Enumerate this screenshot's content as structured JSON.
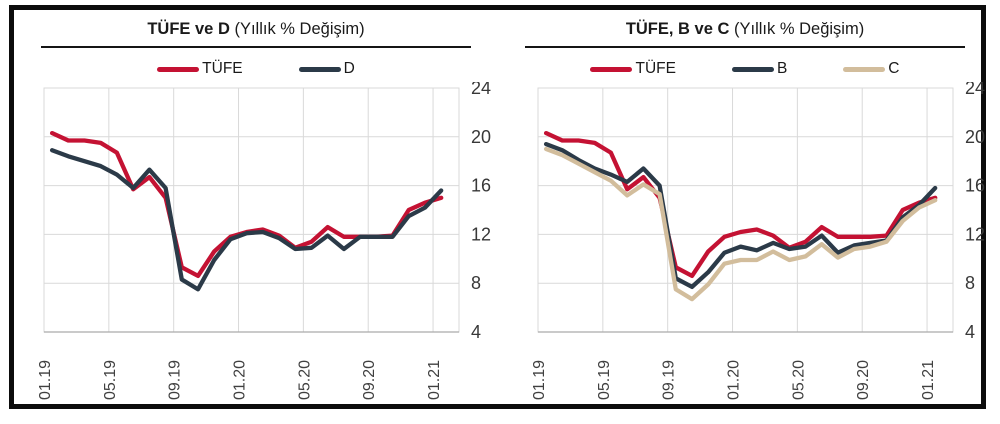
{
  "frame_color": "#0c0c0c",
  "grid_color": "#d9d9d9",
  "axis_line_color": "#ababab",
  "chart_data": [
    {
      "type": "line",
      "title_bold": "TÜFE ve D",
      "title_rest": " (Yıllık % Değişim)",
      "legend_position": "top",
      "grid": true,
      "y_axis_side": "right",
      "ylim": [
        4,
        24
      ],
      "y_ticks": [
        24,
        20,
        16,
        12,
        8,
        4
      ],
      "x_tick_labels": [
        "01.19",
        "05.19",
        "09.19",
        "01.20",
        "05.20",
        "09.20",
        "01.21"
      ],
      "x_tick_step": 4,
      "categories": [
        "01.19",
        "02.19",
        "03.19",
        "04.19",
        "05.19",
        "06.19",
        "07.19",
        "08.19",
        "09.19",
        "10.19",
        "11.19",
        "12.19",
        "01.20",
        "02.20",
        "03.20",
        "04.20",
        "05.20",
        "06.20",
        "07.20",
        "08.20",
        "09.20",
        "10.20",
        "11.20",
        "12.20",
        "01.21"
      ],
      "series": [
        {
          "name": "TÜFE",
          "color": "#c41233",
          "values": [
            20.3,
            19.7,
            19.7,
            19.5,
            18.7,
            15.7,
            16.7,
            15.0,
            9.3,
            8.6,
            10.6,
            11.8,
            12.2,
            12.4,
            11.9,
            10.9,
            11.4,
            12.6,
            11.8,
            11.8,
            11.8,
            11.9,
            14.0,
            14.6,
            15.0
          ]
        },
        {
          "name": "D",
          "color": "#2b3a48",
          "values": [
            18.9,
            18.4,
            18.0,
            17.6,
            16.9,
            15.8,
            17.3,
            15.8,
            8.3,
            7.5,
            9.9,
            11.6,
            12.1,
            12.2,
            11.7,
            10.8,
            10.9,
            11.9,
            10.8,
            11.8,
            11.8,
            11.8,
            13.5,
            14.2,
            15.6
          ]
        }
      ]
    },
    {
      "type": "line",
      "title_bold": "TÜFE, B ve C",
      "title_rest": " (Yıllık % Değişim)",
      "legend_position": "top",
      "grid": true,
      "y_axis_side": "right",
      "ylim": [
        4,
        24
      ],
      "y_ticks": [
        24,
        20,
        16,
        12,
        8,
        4
      ],
      "x_tick_labels": [
        "01.19",
        "05.19",
        "09.19",
        "01.20",
        "05.20",
        "09.20",
        "01.21"
      ],
      "x_tick_step": 4,
      "categories": [
        "01.19",
        "02.19",
        "03.19",
        "04.19",
        "05.19",
        "06.19",
        "07.19",
        "08.19",
        "09.19",
        "10.19",
        "11.19",
        "12.19",
        "01.20",
        "02.20",
        "03.20",
        "04.20",
        "05.20",
        "06.20",
        "07.20",
        "08.20",
        "09.20",
        "10.20",
        "11.20",
        "12.20",
        "01.21"
      ],
      "series": [
        {
          "name": "TÜFE",
          "color": "#c41233",
          "values": [
            20.3,
            19.7,
            19.7,
            19.5,
            18.7,
            15.7,
            16.7,
            15.0,
            9.3,
            8.6,
            10.6,
            11.8,
            12.2,
            12.4,
            11.9,
            10.9,
            11.4,
            12.6,
            11.8,
            11.8,
            11.8,
            11.9,
            14.0,
            14.6,
            15.0
          ]
        },
        {
          "name": "B",
          "color": "#2b3a48",
          "values": [
            19.4,
            18.9,
            18.1,
            17.4,
            16.9,
            16.3,
            17.4,
            16.0,
            8.4,
            7.7,
            8.9,
            10.5,
            11.0,
            10.7,
            11.3,
            10.8,
            11.0,
            11.9,
            10.5,
            11.1,
            11.3,
            11.5,
            13.4,
            14.4,
            15.8
          ]
        },
        {
          "name": "C",
          "color": "#d2bd9c",
          "values": [
            19.0,
            18.5,
            17.8,
            17.1,
            16.4,
            15.2,
            16.1,
            15.3,
            7.5,
            6.7,
            7.9,
            9.6,
            9.9,
            9.9,
            10.6,
            9.9,
            10.2,
            11.2,
            10.1,
            10.8,
            11.0,
            11.4,
            13.1,
            14.2,
            14.8
          ]
        }
      ]
    }
  ]
}
